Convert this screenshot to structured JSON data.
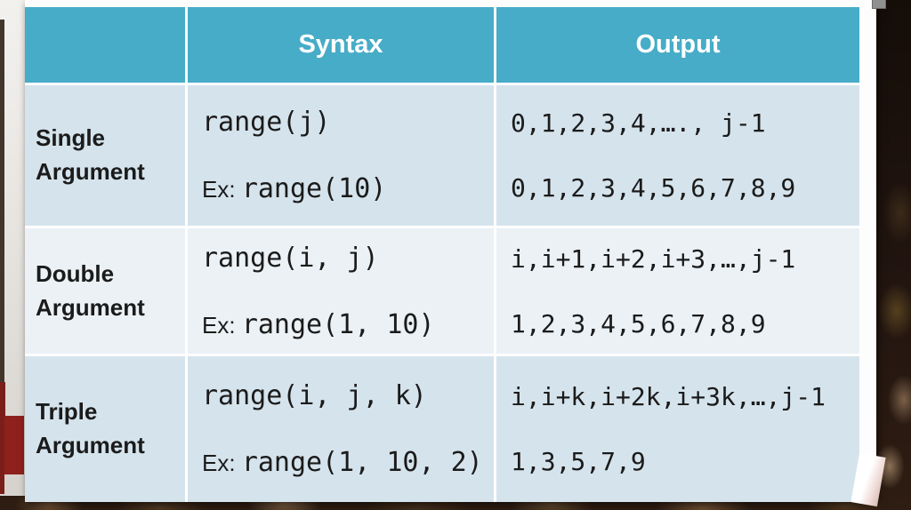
{
  "table": {
    "columns": [
      "",
      "Syntax",
      "Output"
    ],
    "rows": [
      {
        "label": "Single Argument",
        "syntax": "range(j)",
        "example_prefix": "Ex:",
        "example": "range(10)",
        "output": [
          "0,1,2,3,4,…., j-1",
          "0,1,2,3,4,5,6,7,8,9"
        ]
      },
      {
        "label": "Double Argument",
        "syntax": "range(i, j)",
        "example_prefix": "Ex:",
        "example": "range(1, 10)",
        "output": [
          "i,i+1,i+2,i+3,…,j-1",
          "1,2,3,4,5,6,7,8,9"
        ]
      },
      {
        "label": "Triple Argument",
        "syntax": "range(i, j, k)",
        "example_prefix": "Ex:",
        "example": "range(1, 10, 2)",
        "output": [
          "i,i+k,i+2k,i+3k,…,j-1",
          "1,3,5,7,9"
        ]
      }
    ]
  },
  "colors": {
    "header_bg": "#47acc7",
    "row_band_dark": "#d5e3ec",
    "row_band_light": "#ebf1f5",
    "grid_line": "#ffffff",
    "header_text": "#ffffff",
    "body_text": "#1b1b1b",
    "background_red_wall": "#8e211c",
    "slide_bg": "#fdfdfd"
  }
}
